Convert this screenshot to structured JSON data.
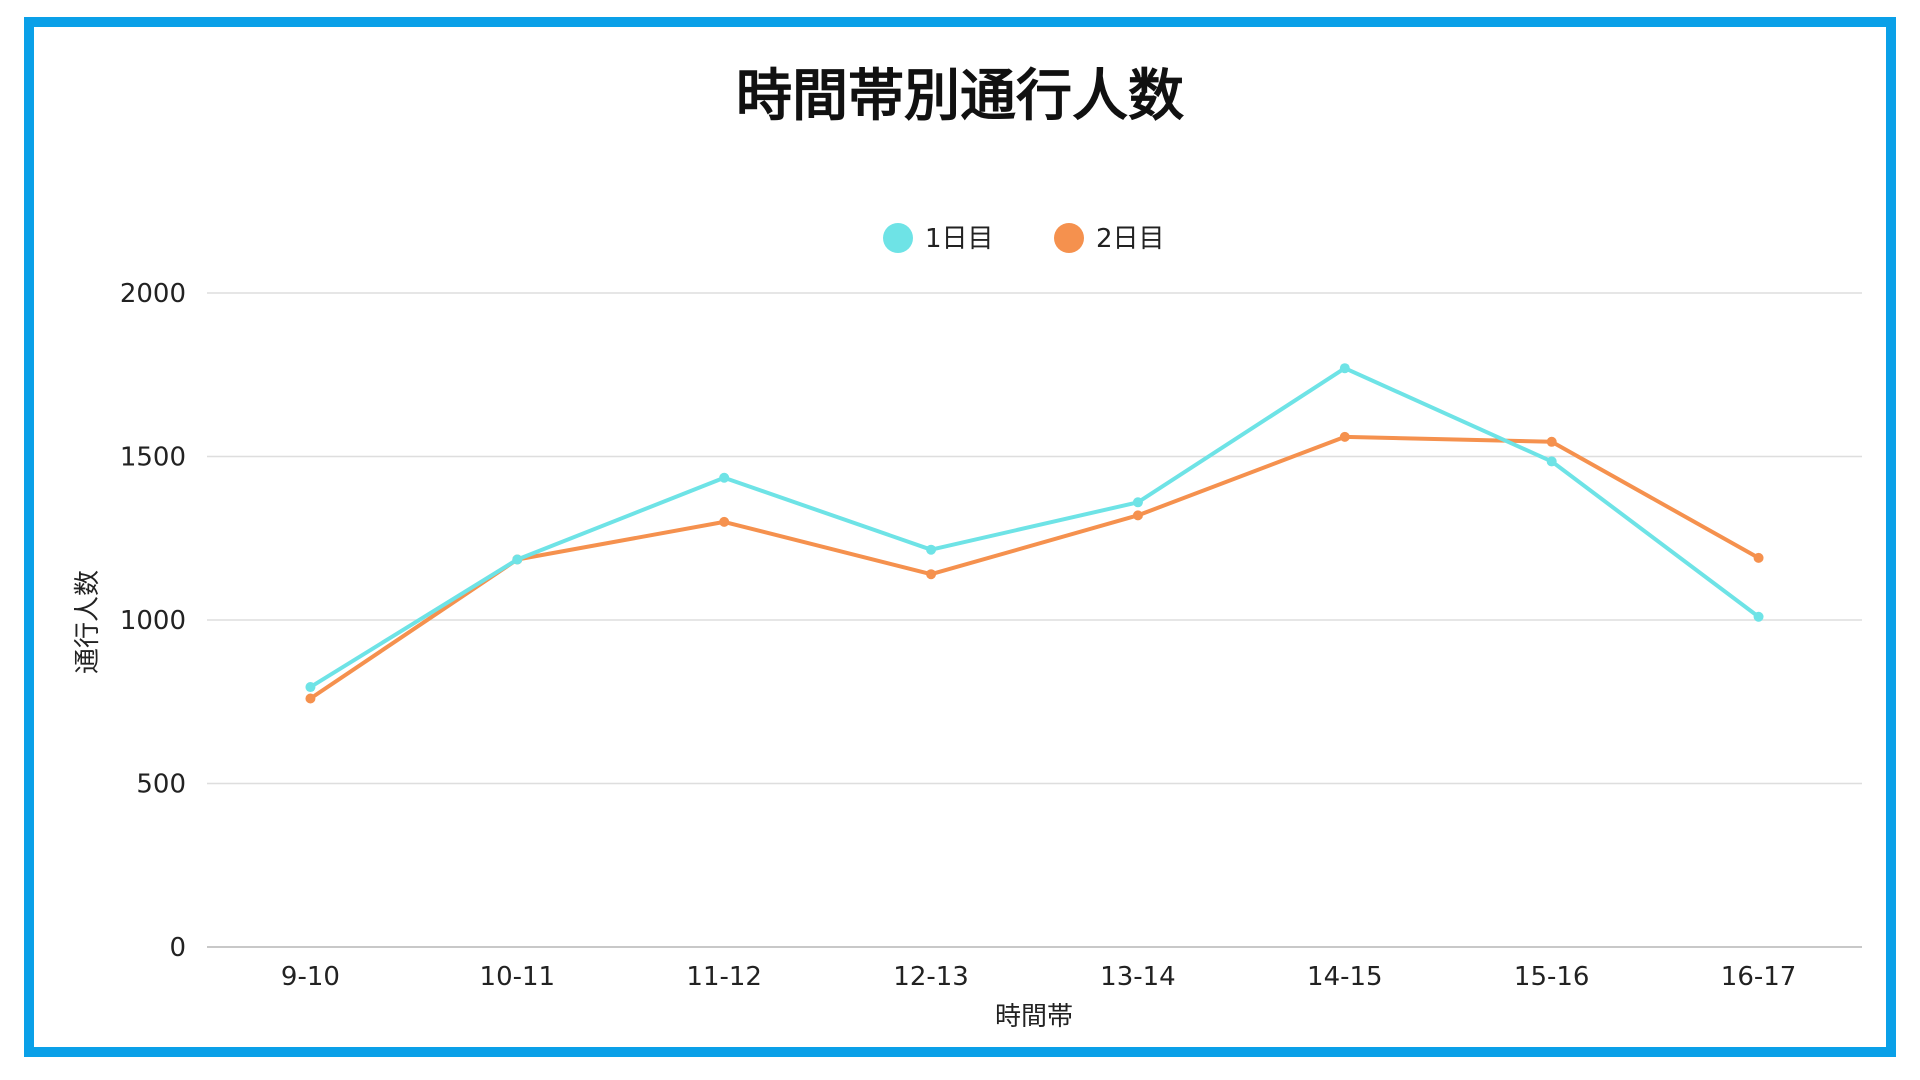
{
  "chart_data": {
    "type": "line",
    "title": "時間帯別通行人数",
    "xlabel": "時間帯",
    "ylabel": "通行人数",
    "categories": [
      "9-10",
      "10-11",
      "11-12",
      "12-13",
      "13-14",
      "14-15",
      "15-16",
      "16-17"
    ],
    "series": [
      {
        "name": "1日目",
        "color": "#6ee3e6",
        "values": [
          795,
          1185,
          1435,
          1215,
          1360,
          1770,
          1485,
          1010
        ]
      },
      {
        "name": "2日目",
        "color": "#f5914e",
        "values": [
          760,
          1185,
          1300,
          1140,
          1320,
          1560,
          1545,
          1190
        ]
      }
    ],
    "ylim": [
      0,
      2000
    ],
    "yticks": [
      0,
      500,
      1000,
      1500,
      2000
    ],
    "grid": true,
    "legend_position": "top-center"
  },
  "frame": {
    "border_color": "#0aa0e8"
  }
}
